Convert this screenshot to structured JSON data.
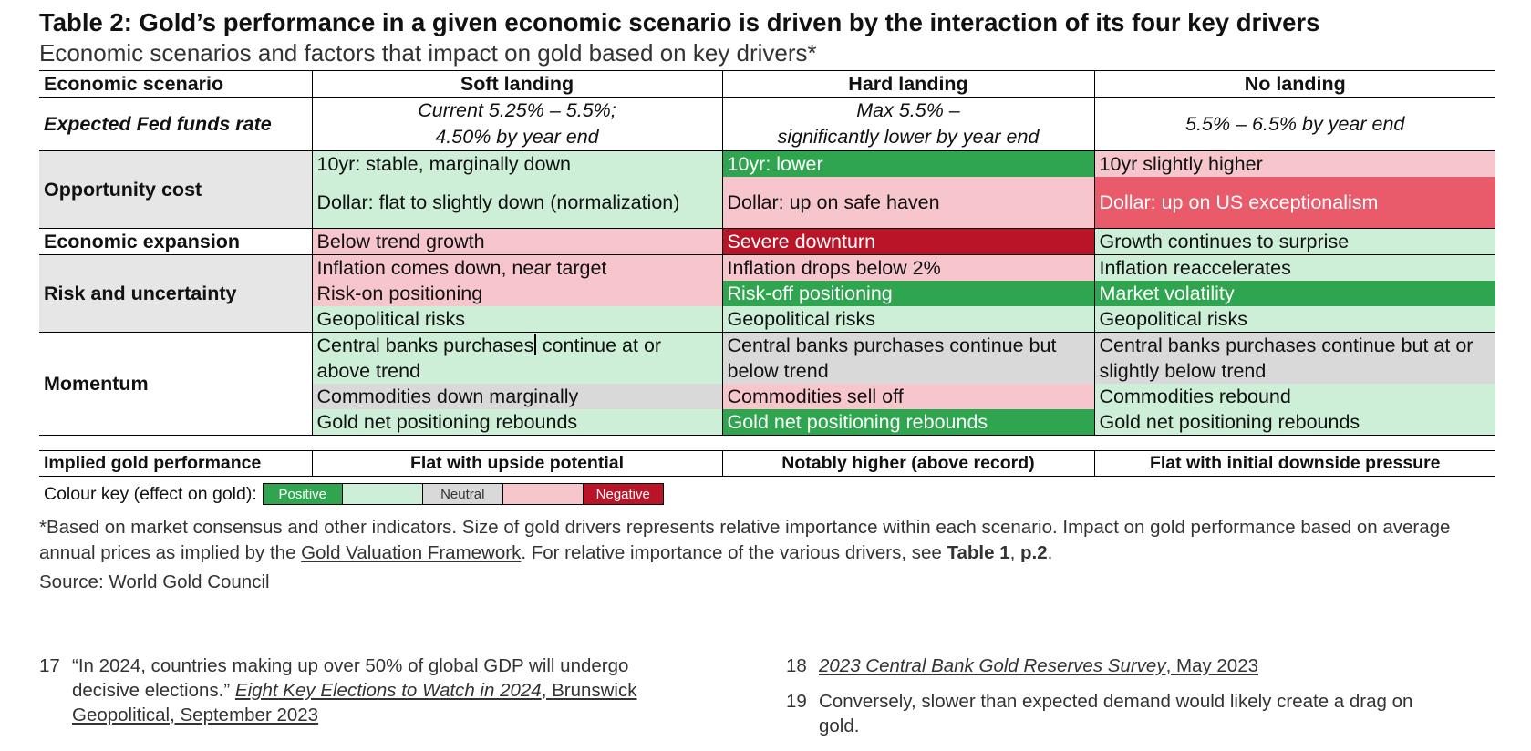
{
  "title": "Table 2: Gold’s performance in a given economic scenario is driven by the interaction of its four key drivers",
  "subtitle": "Economic scenarios and factors that impact on gold based on key drivers*",
  "table": {
    "header": {
      "scenario_label": "Economic scenario",
      "soft": "Soft landing",
      "hard": "Hard landing",
      "no": "No landing"
    },
    "fed": {
      "label": "Expected Fed funds rate",
      "soft_line1": "Current 5.25% – 5.5%;",
      "soft_line2": "4.50% by year end",
      "hard_line1": "Max 5.5% –",
      "hard_line2": "significantly lower by year end",
      "no": "5.5% – 6.5% by year end"
    },
    "opportunity": {
      "label": "Opportunity cost",
      "soft_10yr": "10yr: stable, marginally down",
      "soft_dollar": "Dollar: flat to slightly down (normalization)",
      "hard_10yr": "10yr: lower",
      "hard_dollar": "Dollar: up on safe haven",
      "no_10yr": "10yr slightly higher",
      "no_dollar": "Dollar: up on US exceptionalism"
    },
    "expansion": {
      "label": "Economic expansion",
      "soft": "Below trend growth",
      "hard": "Severe downturn",
      "no": "Growth continues to surprise"
    },
    "risk": {
      "label": "Risk and uncertainty",
      "soft_inflation": "Inflation comes down, near target",
      "soft_positioning": "Risk-on positioning",
      "soft_geo": "Geopolitical risks",
      "hard_inflation": "Inflation drops below 2%",
      "hard_positioning": "Risk-off positioning",
      "hard_geo": "Geopolitical risks",
      "no_inflation": "Inflation reaccelerates",
      "no_positioning": "Market volatility",
      "no_geo": "Geopolitical risks"
    },
    "momentum": {
      "label": "Momentum",
      "soft_cb_a": "Central banks purchases",
      "soft_cb_b": " continue at or above trend",
      "soft_commod": "Commodities down marginally",
      "soft_gold": "Gold net positioning rebounds",
      "hard_cb": "Central banks purchases continue but below trend",
      "hard_commod": "Commodities sell off",
      "hard_gold": "Gold net positioning rebounds",
      "no_cb": "Central banks purchases continue but at or slightly below trend",
      "no_commod": "Commodities rebound",
      "no_gold": "Gold net positioning rebounds"
    }
  },
  "implied": {
    "label": "Implied gold performance",
    "soft": "Flat with upside potential",
    "hard": "Notably higher (above record)",
    "no": "Flat with initial downside pressure"
  },
  "colour_key": {
    "label": "Colour key (effect on gold):",
    "positive": "Positive",
    "neutral": "Neutral",
    "negative": "Negative",
    "colors": {
      "positive_strong": "#2fa550",
      "positive_weak": "#cdeed7",
      "neutral": "#d9d9d9",
      "negative_weak": "#f7c6cc",
      "negative_mid": "#e95a6b",
      "negative_strong": "#ba1429"
    }
  },
  "note": {
    "part1": "*Based on market consensus and other indicators. Size of gold drivers represents relative importance within each scenario. Impact on gold performance based on average annual prices as implied by the ",
    "link": "Gold Valuation Framework",
    "part2": ". For relative importance of the various drivers, see ",
    "bold": "Table 1",
    "part3": ", ",
    "bold2": "p.2",
    "part4": "."
  },
  "source": "Source: World Gold Council",
  "footnotes": {
    "f17": {
      "num": "17",
      "quote": "“In 2024, countries making up over 50% of global GDP will undergo decisive elections.” ",
      "title": "Eight Key Elections to Watch in 2024",
      "rest": ", Brunswick Geopolitical, September 2023"
    },
    "f18": {
      "num": "18",
      "title": "2023 Central Bank Gold Reserves Survey",
      "rest": ", May 2023"
    },
    "f19": {
      "num": "19",
      "text": "Conversely, slower than expected demand would likely create a drag on gold."
    }
  }
}
